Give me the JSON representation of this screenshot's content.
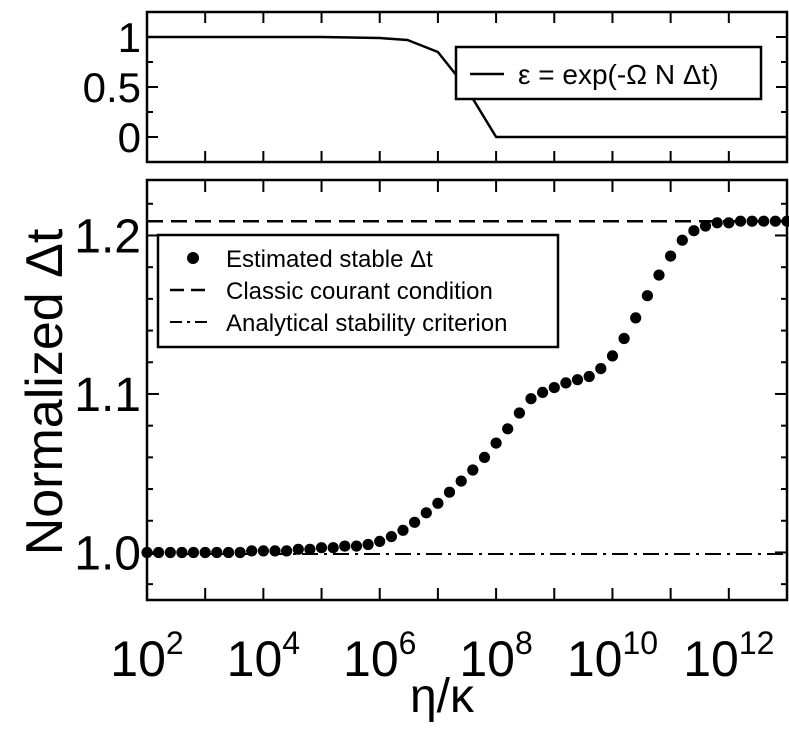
{
  "chart_data": [
    {
      "type": "line",
      "panel": "top",
      "ylabel": "",
      "xscale": "log",
      "xlim": [
        100.0,
        10000000000000.0
      ],
      "ylim": [
        -0.25,
        1.25
      ],
      "yticks": [
        "1",
        "0.5",
        "0"
      ],
      "legend": {
        "placement": "right",
        "entries": [
          {
            "label": "ε = exp(-Ω N  Δt)",
            "style": "solid"
          }
        ]
      },
      "series": [
        {
          "name": "ε = exp(-Ω N  Δt)",
          "x": [
            100.0,
            1000.0,
            10000.0,
            100000.0,
            1000000.0,
            3000000.0,
            10000000.0,
            30000000.0,
            100000000.0,
            1000000000.0,
            10000000000.0,
            100000000000.0,
            1000000000000.0,
            10000000000000.0
          ],
          "values": [
            1.0,
            1.0,
            1.0,
            1.0,
            0.99,
            0.97,
            0.85,
            0.5,
            0.0,
            0.0,
            0.0,
            0.0,
            0.0,
            0.0
          ]
        }
      ]
    },
    {
      "type": "scatter",
      "panel": "bottom",
      "xlabel": "η/κ",
      "ylabel": "Normalized Δt",
      "xscale": "log",
      "xlim": [
        100.0,
        10000000000000.0
      ],
      "ylim": [
        0.97,
        1.235
      ],
      "xticks": [
        "10^2",
        "10^4",
        "10^6",
        "10^8",
        "10^10",
        "10^12"
      ],
      "yticks": [
        "1.2",
        "1.1",
        "1.0"
      ],
      "grid": false,
      "legend": {
        "placement": "top-left",
        "entries": [
          {
            "label": "Estimated stable  Δt",
            "style": "dot"
          },
          {
            "label": "Classic courant condition",
            "style": "dashed"
          },
          {
            "label": "Analytical stability criterion",
            "style": "dashdot"
          }
        ]
      },
      "series": [
        {
          "name": "Estimated stable  Δt",
          "x": [
            100,
            158,
            251,
            398,
            631,
            1000,
            1585,
            2512,
            3981,
            6310,
            10000,
            15849,
            25119,
            39811,
            63096,
            100000,
            158489,
            251189,
            398107,
            630957,
            1000000,
            1584893,
            2511886,
            3981072,
            6309573,
            10000000,
            15848932,
            25118864,
            39810717,
            63095734,
            100000000,
            158489319,
            251188643,
            398107171,
            630957344,
            1000000000,
            1584893192,
            2511886432,
            3981071706,
            6309573445,
            10000000000,
            15848931925,
            25118864315,
            39810717055,
            63095734448,
            100000000000,
            158489319246,
            251188643151,
            398107170553,
            630957344480,
            1000000000000,
            1584893192461,
            2511886431510,
            3981071705535,
            6309573444802,
            10000000000000
          ],
          "values": [
            1.0,
            1.0,
            1.0,
            1.0,
            1.0,
            1.0,
            1.0,
            1.0,
            1.0,
            1.001,
            1.001,
            1.001,
            1.001,
            1.002,
            1.002,
            1.003,
            1.003,
            1.004,
            1.004,
            1.005,
            1.007,
            1.01,
            1.014,
            1.019,
            1.025,
            1.031,
            1.038,
            1.045,
            1.052,
            1.06,
            1.069,
            1.078,
            1.088,
            1.097,
            1.101,
            1.104,
            1.107,
            1.109,
            1.111,
            1.116,
            1.124,
            1.135,
            1.148,
            1.162,
            1.175,
            1.187,
            1.197,
            1.203,
            1.206,
            1.208,
            1.208,
            1.209,
            1.209,
            1.209,
            1.209,
            1.209
          ]
        },
        {
          "name": "Classic courant condition",
          "style": "dashed",
          "y": 1.209
        },
        {
          "name": "Analytical stability criterion",
          "style": "dashdot",
          "y": 0.999
        }
      ]
    }
  ]
}
